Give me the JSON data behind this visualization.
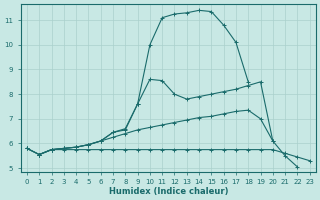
{
  "xlabel": "Humidex (Indice chaleur)",
  "bg_color": "#c8e8e4",
  "line_color": "#1a6b6b",
  "grid_color": "#aad0cc",
  "xlim": [
    -0.5,
    23.5
  ],
  "ylim": [
    4.85,
    11.65
  ],
  "yticks": [
    5,
    6,
    7,
    8,
    9,
    10,
    11
  ],
  "xticks": [
    0,
    1,
    2,
    3,
    4,
    5,
    6,
    7,
    8,
    9,
    10,
    11,
    12,
    13,
    14,
    15,
    16,
    17,
    18,
    19,
    20,
    21,
    22,
    23
  ],
  "series": [
    {
      "x": [
        0,
        1,
        2,
        3,
        4,
        5,
        6,
        7,
        8,
        9,
        10,
        11,
        12,
        13,
        14,
        15,
        16,
        17,
        18,
        19,
        20,
        21,
        22,
        23
      ],
      "y": [
        5.8,
        5.55,
        5.75,
        5.75,
        5.75,
        5.75,
        5.75,
        5.75,
        5.75,
        5.75,
        5.75,
        5.75,
        5.75,
        5.75,
        5.75,
        5.75,
        5.75,
        5.75,
        5.75,
        5.75,
        5.75,
        5.6,
        5.45,
        5.3
      ]
    },
    {
      "x": [
        0,
        1,
        2,
        3,
        4,
        5,
        6,
        7,
        8,
        9,
        10,
        11,
        12,
        13,
        14,
        15,
        16,
        17,
        18,
        19,
        20,
        21,
        22
      ],
      "y": [
        5.8,
        5.55,
        5.75,
        5.8,
        5.85,
        5.95,
        6.1,
        6.25,
        6.4,
        6.55,
        6.65,
        6.75,
        6.85,
        6.95,
        7.05,
        7.1,
        7.2,
        7.3,
        7.35,
        7.0,
        6.1,
        5.5,
        5.05
      ]
    },
    {
      "x": [
        0,
        1,
        2,
        3,
        4,
        5,
        6,
        7,
        8,
        9,
        10,
        11,
        12,
        13,
        14,
        15,
        16,
        17,
        18,
        19,
        20
      ],
      "y": [
        5.8,
        5.55,
        5.75,
        5.8,
        5.85,
        5.95,
        6.1,
        6.45,
        6.55,
        7.6,
        8.6,
        8.55,
        8.0,
        7.8,
        7.9,
        8.0,
        8.1,
        8.2,
        8.35,
        8.5,
        6.1
      ]
    },
    {
      "x": [
        1,
        2,
        3,
        4,
        5,
        6,
        7,
        8,
        9,
        10,
        11,
        12,
        13,
        14,
        15,
        16,
        17,
        18,
        19,
        20,
        21,
        22,
        23
      ],
      "y": [
        5.55,
        5.75,
        5.8,
        5.85,
        5.95,
        6.1,
        6.45,
        6.6,
        7.6,
        10.0,
        11.1,
        11.25,
        11.3,
        11.4,
        11.35,
        10.8,
        10.1,
        8.5,
        null,
        null,
        null,
        null,
        null
      ]
    }
  ]
}
